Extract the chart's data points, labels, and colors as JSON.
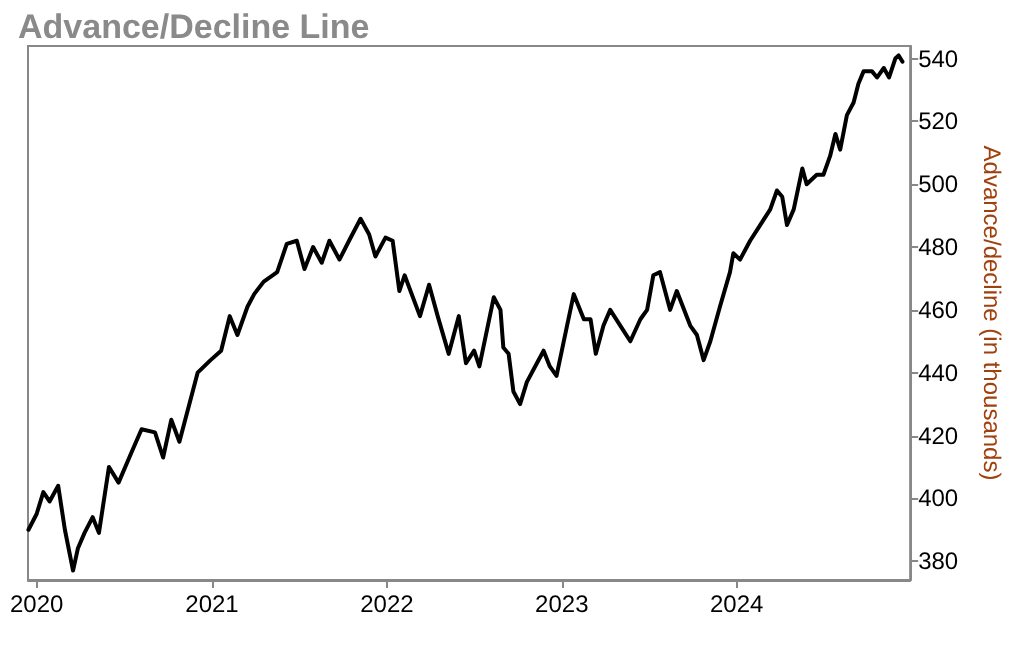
{
  "chart_data": {
    "type": "line",
    "title": "Advance/Decline Line",
    "ylabel": "Advance/decline (in thousands)",
    "xlim": [
      "2019-12-14",
      "2024-12-28"
    ],
    "xticks": [
      "2020",
      "2021",
      "2022",
      "2023",
      "2024"
    ],
    "ylim": [
      374,
      544
    ],
    "yticks": [
      380,
      400,
      420,
      440,
      460,
      480,
      500,
      520,
      540
    ],
    "marker": "none",
    "line_style": "solid",
    "x": [
      "2019-12-15",
      "2020-01-01",
      "2020-01-15",
      "2020-01-28",
      "2020-02-15",
      "2020-02-29",
      "2020-03-17",
      "2020-03-27",
      "2020-04-10",
      "2020-04-27",
      "2020-05-10",
      "2020-05-31",
      "2020-06-20",
      "2020-07-18",
      "2020-08-07",
      "2020-09-04",
      "2020-09-21",
      "2020-10-08",
      "2020-10-25",
      "2020-12-02",
      "2020-12-29",
      "2021-01-20",
      "2021-02-07",
      "2021-02-23",
      "2021-03-16",
      "2021-03-30",
      "2021-04-19",
      "2021-05-17",
      "2021-06-06",
      "2021-06-27",
      "2021-07-13",
      "2021-07-31",
      "2021-08-18",
      "2021-09-03",
      "2021-09-24",
      "2021-10-14",
      "2021-11-07",
      "2021-11-25",
      "2021-12-08",
      "2021-12-29",
      "2022-01-13",
      "2022-01-27",
      "2022-02-07",
      "2022-03-11",
      "2022-03-30",
      "2022-04-17",
      "2022-05-10",
      "2022-05-31",
      "2022-06-15",
      "2022-07-02",
      "2022-07-13",
      "2022-08-12",
      "2022-08-26",
      "2022-09-01",
      "2022-09-12",
      "2022-09-22",
      "2022-10-06",
      "2022-10-20",
      "2022-11-03",
      "2022-11-24",
      "2022-12-07",
      "2022-12-21",
      "2023-01-12",
      "2023-01-26",
      "2023-02-16",
      "2023-03-02",
      "2023-03-13",
      "2023-03-29",
      "2023-04-12",
      "2023-05-03",
      "2023-05-24",
      "2023-06-14",
      "2023-06-28",
      "2023-07-11",
      "2023-07-25",
      "2023-08-15",
      "2023-08-29",
      "2023-09-26",
      "2023-10-10",
      "2023-10-24",
      "2023-11-07",
      "2023-11-27",
      "2023-12-18",
      "2023-12-25",
      "2024-01-08",
      "2024-01-29",
      "2024-02-19",
      "2024-03-11",
      "2024-03-25",
      "2024-04-05",
      "2024-04-15",
      "2024-04-29",
      "2024-05-17",
      "2024-05-26",
      "2024-06-16",
      "2024-06-30",
      "2024-07-14",
      "2024-07-25",
      "2024-08-04",
      "2024-08-18",
      "2024-09-01",
      "2024-09-11",
      "2024-09-22",
      "2024-10-09",
      "2024-10-20",
      "2024-11-03",
      "2024-11-14",
      "2024-11-27",
      "2024-12-04",
      "2024-12-12"
    ],
    "series": [
      {
        "color": "#000000",
        "values": [
          390,
          395,
          402,
          399,
          404,
          390,
          377,
          384,
          389,
          394,
          389,
          410,
          405,
          415,
          422,
          421,
          413,
          425,
          418,
          440,
          444,
          447,
          458,
          452,
          461,
          465,
          469,
          472,
          481,
          482,
          473,
          480,
          475,
          482,
          476,
          482,
          489,
          484,
          477,
          483,
          482,
          466,
          471,
          458,
          468,
          458,
          446,
          458,
          443,
          447,
          442,
          464,
          460,
          448,
          446,
          434,
          430,
          437,
          441,
          447,
          442,
          439,
          455,
          465,
          457,
          457,
          446,
          455,
          460,
          455,
          450,
          457,
          460,
          471,
          472,
          460,
          466,
          455,
          452,
          444,
          450,
          461,
          472,
          478,
          476,
          482,
          487,
          492,
          498,
          496,
          487,
          492,
          505,
          500,
          503,
          503,
          509,
          516,
          511,
          522,
          526,
          532,
          536,
          536,
          534,
          537,
          534,
          540,
          541,
          539
        ]
      }
    ]
  }
}
